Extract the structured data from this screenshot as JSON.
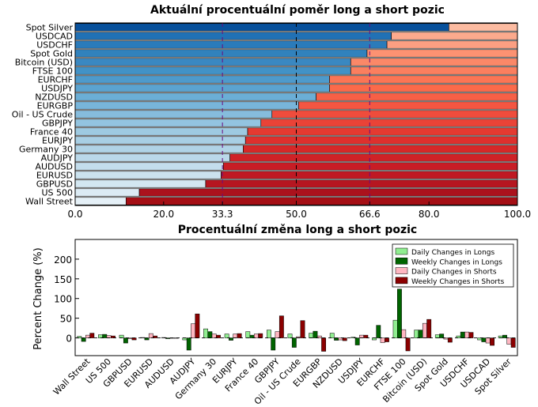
{
  "chart_data": [
    {
      "type": "bar",
      "orientation": "horizontal",
      "title": "Aktuální procentuální poměr long a short pozic",
      "categories": [
        "Spot Silver",
        "USDCAD",
        "USDCHF",
        "Spot Gold",
        "Bitcoin (USD)",
        "FTSE 100",
        "EURCHF",
        "USDJPY",
        "NZDUSD",
        "EURGBP",
        "Oil - US Crude",
        "GBPJPY",
        "France 40",
        "EURJPY",
        "Germany 30",
        "AUDJPY",
        "AUDUSD",
        "EURUSD",
        "GBPUSD",
        "US 500",
        "Wall Street"
      ],
      "series": [
        {
          "values": [
            84.5,
            71.5,
            70.5,
            66.0,
            62.3,
            62.3,
            57.5,
            57.5,
            54.5,
            50.5,
            44.5,
            42.0,
            39.0,
            38.5,
            38.0,
            35.0,
            33.5,
            33.0,
            29.5,
            14.5,
            11.5
          ]
        },
        {
          "values": [
            15.5,
            28.5,
            29.5,
            34.0,
            37.7,
            37.7,
            42.5,
            42.5,
            45.5,
            49.5,
            55.5,
            58.0,
            61.0,
            61.5,
            62.0,
            65.0,
            66.5,
            67.0,
            70.5,
            85.5,
            88.5
          ]
        }
      ],
      "xlim": [
        0,
        100
      ],
      "xticks": [
        "0.0",
        "20.0",
        "33.3",
        "50.0",
        "66.6",
        "80.0",
        "100.0"
      ],
      "reference_lines": [
        33.3,
        50.0,
        66.6
      ]
    },
    {
      "type": "bar",
      "title": "Procentuální změna long a short pozic",
      "ylabel": "Percent Change (%)",
      "categories": [
        "Wall Street",
        "US 500",
        "GBPUSD",
        "EURUSD",
        "AUDUSD",
        "AUDJPY",
        "Germany 30",
        "EURJPY",
        "France 40",
        "GBPJPY",
        "Oil - US Crude",
        "EURGBP",
        "NZDUSD",
        "USDJPY",
        "EURCHF",
        "FTSE 100",
        "Bitcoin (USD)",
        "Spot Gold",
        "USDCHF",
        "USDCAD",
        "Spot Silver"
      ],
      "series": [
        {
          "name": "Daily Changes in Longs",
          "values": [
            4,
            8,
            7,
            1,
            1,
            -5,
            23,
            10,
            16,
            20,
            10,
            12,
            12,
            2,
            -5,
            45,
            20,
            8,
            5,
            -5,
            5
          ]
        },
        {
          "name": "Weekly Changes in Longs",
          "values": [
            -9,
            9,
            -13,
            -5,
            -2,
            -31,
            16,
            -6,
            7,
            -31,
            -24,
            17,
            -6,
            -18,
            32,
            124,
            20,
            10,
            15,
            -10,
            7
          ]
        },
        {
          "name": "Daily Changes in Shorts",
          "values": [
            7,
            6,
            -2,
            11,
            0,
            36,
            10,
            10,
            10,
            16,
            3,
            5,
            -5,
            7,
            -12,
            21,
            37,
            -3,
            15,
            -13,
            -16
          ]
        },
        {
          "name": "Weekly Changes in Shorts",
          "values": [
            12,
            5,
            -5,
            5,
            0,
            61,
            7,
            11,
            11,
            56,
            44,
            -34,
            -7,
            7,
            -10,
            -33,
            47,
            -11,
            14,
            -19,
            -24
          ]
        }
      ],
      "ylim": [
        -45,
        250
      ],
      "yticks": [
        "0",
        "50",
        "100",
        "150",
        "200"
      ],
      "legend": "top-right"
    }
  ]
}
